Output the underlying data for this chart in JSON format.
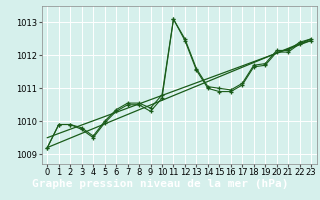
{
  "xlabel": "Graphe pression niveau de la mer (hPa)",
  "bg_color": "#d6f0ec",
  "plot_bg_color": "#d6f0ec",
  "xlabel_bg_color": "#2d6b2d",
  "grid_color": "#ffffff",
  "line_color": "#1a5c1a",
  "xlim": [
    -0.5,
    23.5
  ],
  "ylim": [
    1008.7,
    1013.5
  ],
  "yticks": [
    1009,
    1010,
    1011,
    1012,
    1013
  ],
  "xticks": [
    0,
    1,
    2,
    3,
    4,
    5,
    6,
    7,
    8,
    9,
    10,
    11,
    12,
    13,
    14,
    15,
    16,
    17,
    18,
    19,
    20,
    21,
    22,
    23
  ],
  "series1_x": [
    0,
    1,
    2,
    3,
    4,
    5,
    6,
    7,
    8,
    9,
    10,
    11,
    12,
    13,
    14,
    15,
    16,
    17,
    18,
    19,
    20,
    21,
    22,
    23
  ],
  "series1_y": [
    1009.2,
    1009.9,
    1009.9,
    1009.8,
    1009.55,
    1010.0,
    1010.35,
    1010.55,
    1010.55,
    1010.4,
    1010.8,
    1013.1,
    1012.5,
    1011.6,
    1011.05,
    1011.0,
    1010.95,
    1011.15,
    1011.7,
    1011.75,
    1012.15,
    1012.15,
    1012.4,
    1012.5
  ],
  "series2_x": [
    0,
    1,
    2,
    3,
    4,
    5,
    6,
    7,
    8,
    9,
    10,
    11,
    12,
    13,
    14,
    15,
    16,
    17,
    18,
    19,
    20,
    21,
    22,
    23
  ],
  "series2_y": [
    1009.2,
    1009.9,
    1009.9,
    1009.75,
    1009.5,
    1009.95,
    1010.3,
    1010.5,
    1010.5,
    1010.3,
    1010.7,
    1013.1,
    1012.45,
    1011.55,
    1011.0,
    1010.9,
    1010.9,
    1011.1,
    1011.65,
    1011.7,
    1012.1,
    1012.1,
    1012.35,
    1012.45
  ],
  "trend_x": [
    0,
    23
  ],
  "trend_y": [
    1009.2,
    1012.5
  ],
  "trend2_x": [
    0,
    23
  ],
  "trend2_y": [
    1009.5,
    1012.45
  ],
  "tick_fontsize": 6,
  "xlabel_fontsize": 8
}
